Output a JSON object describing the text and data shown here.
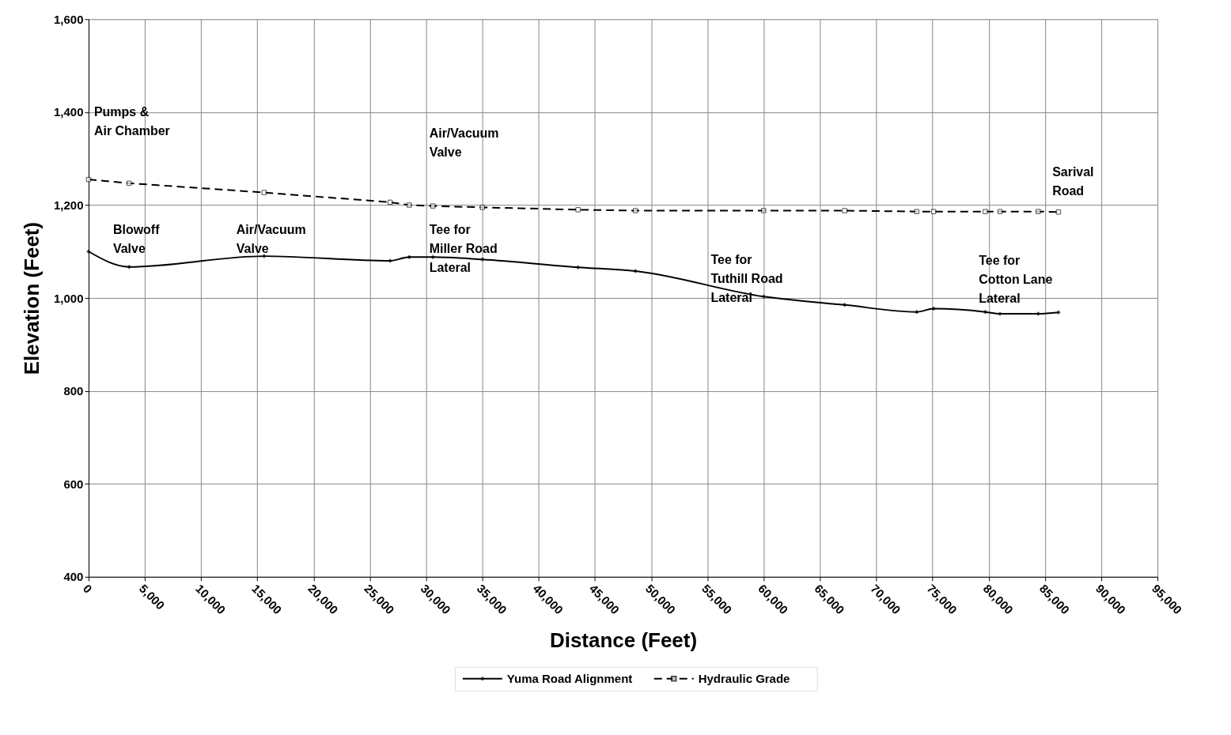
{
  "chart_data": {
    "type": "line",
    "xlabel": "Distance (Feet)",
    "ylabel": "Elevation (Feet)",
    "xlim": [
      0,
      95000
    ],
    "xticks": [
      0,
      {
        "value": 5000,
        "label": "5,000"
      },
      {
        "value": 10000,
        "label": "10,000"
      },
      {
        "value": 15000,
        "label": "15,000"
      },
      {
        "value": 20000,
        "label": "20,000"
      },
      {
        "value": 25000,
        "label": "25,000"
      },
      {
        "value": 30000,
        "label": "30,000"
      },
      {
        "value": 35000,
        "label": "35,000"
      },
      {
        "value": 40000,
        "label": "40,000"
      },
      {
        "value": 45000,
        "label": "45,000"
      },
      {
        "value": 50000,
        "label": "50,000"
      },
      {
        "value": 55000,
        "label": "55,000"
      },
      {
        "value": 60000,
        "label": "60,000"
      },
      {
        "value": 65000,
        "label": "65,000"
      },
      {
        "value": 70000,
        "label": "70,000"
      },
      {
        "value": 75000,
        "label": "75,000"
      },
      {
        "value": 80000,
        "label": "80,000"
      },
      {
        "value": 85000,
        "label": "85,000"
      },
      {
        "value": 90000,
        "label": "90,000"
      },
      {
        "value": 95000,
        "label": "95,000"
      }
    ],
    "ylim": [
      400,
      1600
    ],
    "yticks": [
      400,
      600,
      800,
      {
        "value": 1000,
        "label": "1,000"
      },
      {
        "value": 1200,
        "label": "1,200"
      },
      {
        "value": 1400,
        "label": "1,400"
      },
      {
        "value": 1600,
        "label": "1,600"
      }
    ],
    "grid": true,
    "legend": "bottom",
    "x": [
      0,
      3600,
      15600,
      26800,
      28500,
      30600,
      35000,
      43500,
      48600,
      60000,
      67200,
      73600,
      75100,
      79700,
      81000,
      84400,
      86200
    ],
    "series": [
      {
        "name": "Yuma Road Alignment",
        "color": "#000000",
        "marker": "diamond",
        "line_style": "solid",
        "values": [
          1100,
          1067,
          1090,
          1080,
          1088,
          1088,
          1083,
          1066,
          1058,
          1003,
          985,
          970,
          977,
          970,
          966,
          966,
          969
        ]
      },
      {
        "name": "Hydraulic Grade",
        "color": "#000000",
        "marker": "square",
        "line_style": "dashed",
        "values": [
          1255,
          1247,
          1227,
          1206,
          1200,
          1198,
          1195,
          1190,
          1188,
          1188,
          1188,
          1186,
          1186,
          1186,
          1186,
          1186,
          1185
        ]
      }
    ],
    "annotations": [
      "Pumps &\nAir Chamber",
      "Air/Vacuum\nValve",
      "Blowoff\nValve",
      "Air/Vacuum\nValve",
      "Tee for\nMiller Road\nLateral",
      "Tee for\nTuthill Road\nLateral",
      "Tee for\nCotton Lane\nLateral",
      "Sarival\nRoad"
    ]
  }
}
